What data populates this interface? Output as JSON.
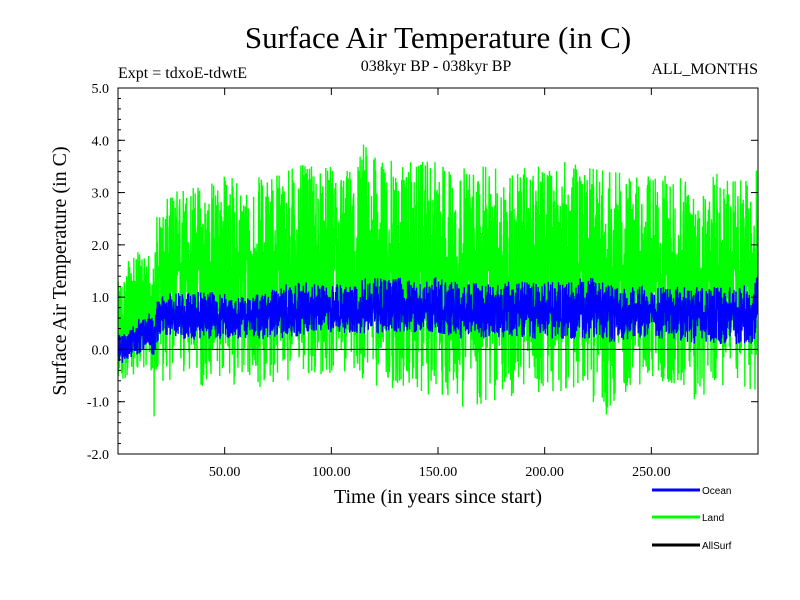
{
  "chart_data": {
    "type": "line",
    "title": "Surface Air Temperature (in C)",
    "subtitle_left": "Expt = tdxoE-tdwtE",
    "subtitle_center": "038kyr BP - 038kyr BP",
    "subtitle_right": "ALL_MONTHS",
    "xlabel": "Time (in years since start)",
    "ylabel": "Surface Air Temperature (in C)",
    "xlim": [
      0,
      300
    ],
    "ylim": [
      -2.0,
      5.0
    ],
    "x_ticks": [
      50,
      100,
      150,
      200,
      250
    ],
    "x_tick_labels": [
      "50.00",
      "100.00",
      "150.00",
      "200.00",
      "250.00"
    ],
    "y_ticks": [
      -2,
      -1,
      0,
      1,
      2,
      3,
      4,
      5
    ],
    "y_tick_labels": [
      "-2.0",
      "-1.0",
      "0.0",
      "1.0",
      "2.0",
      "3.0",
      "4.0",
      "5.0"
    ],
    "zero_line": 0.0,
    "series": [
      {
        "name": "Land",
        "color": "#00ff00",
        "x": [
          0,
          5,
          10,
          15,
          17,
          18,
          20,
          25,
          30,
          40,
          50,
          60,
          70,
          80,
          90,
          100,
          110,
          115,
          120,
          130,
          140,
          150,
          160,
          170,
          180,
          190,
          200,
          210,
          220,
          230,
          240,
          250,
          260,
          270,
          280,
          290,
          298,
          300
        ],
        "mean": [
          0.3,
          0.6,
          0.8,
          0.9,
          0.6,
          1.2,
          1.4,
          1.5,
          1.5,
          1.5,
          1.5,
          1.5,
          1.5,
          1.6,
          1.7,
          1.7,
          1.75,
          1.8,
          1.75,
          1.7,
          1.7,
          1.65,
          1.6,
          1.6,
          1.6,
          1.65,
          1.65,
          1.65,
          1.6,
          1.55,
          1.55,
          1.55,
          1.5,
          1.5,
          1.5,
          1.5,
          1.6,
          1.6
        ],
        "max": [
          1.3,
          1.7,
          1.9,
          1.8,
          1.6,
          2.6,
          2.7,
          3.0,
          3.2,
          3.2,
          3.4,
          3.2,
          3.4,
          3.6,
          3.5,
          3.5,
          3.5,
          4.05,
          3.7,
          3.6,
          3.6,
          3.6,
          3.5,
          3.5,
          3.5,
          3.5,
          3.5,
          3.6,
          3.5,
          3.5,
          3.3,
          3.4,
          3.3,
          3.3,
          3.4,
          3.3,
          3.2,
          3.8
        ],
        "min": [
          -0.7,
          -0.6,
          -0.4,
          -0.3,
          -1.45,
          -0.9,
          -0.7,
          -0.6,
          -0.7,
          -0.8,
          -0.6,
          -0.8,
          -0.7,
          -0.6,
          -0.6,
          -0.5,
          -0.5,
          -0.6,
          -0.7,
          -0.8,
          -0.9,
          -0.9,
          -1.1,
          -1.2,
          -1.0,
          -0.9,
          -0.8,
          -0.8,
          -0.9,
          -1.3,
          -0.8,
          -0.6,
          -0.7,
          -1.0,
          -0.8,
          -0.7,
          -1.0,
          -0.5
        ]
      },
      {
        "name": "Ocean",
        "color": "#0000ff",
        "x": [
          0,
          5,
          10,
          15,
          17,
          18,
          20,
          25,
          30,
          40,
          50,
          60,
          70,
          80,
          90,
          100,
          110,
          115,
          120,
          130,
          140,
          150,
          160,
          170,
          180,
          190,
          200,
          210,
          220,
          230,
          240,
          250,
          260,
          270,
          280,
          290,
          298,
          300
        ],
        "mean": [
          0.0,
          0.15,
          0.3,
          0.4,
          0.2,
          0.5,
          0.6,
          0.65,
          0.65,
          0.65,
          0.65,
          0.65,
          0.65,
          0.7,
          0.75,
          0.78,
          0.8,
          0.8,
          0.8,
          0.78,
          0.78,
          0.76,
          0.75,
          0.74,
          0.74,
          0.75,
          0.75,
          0.75,
          0.74,
          0.72,
          0.72,
          0.72,
          0.7,
          0.7,
          0.7,
          0.7,
          0.8,
          0.8
        ],
        "max": [
          0.3,
          0.4,
          0.6,
          0.7,
          0.5,
          0.9,
          1.0,
          1.1,
          1.1,
          1.1,
          1.1,
          1.0,
          1.1,
          1.3,
          1.3,
          1.3,
          1.3,
          1.5,
          1.4,
          1.4,
          1.3,
          1.4,
          1.3,
          1.3,
          1.3,
          1.3,
          1.3,
          1.3,
          1.4,
          1.3,
          1.2,
          1.2,
          1.2,
          1.2,
          1.2,
          1.2,
          1.3,
          1.5
        ],
        "min": [
          -0.3,
          -0.2,
          -0.1,
          0.0,
          -0.2,
          0.1,
          0.2,
          0.2,
          0.2,
          0.2,
          0.2,
          0.2,
          0.2,
          0.2,
          0.3,
          0.3,
          0.3,
          0.3,
          0.3,
          0.3,
          0.3,
          0.3,
          0.2,
          0.2,
          0.2,
          0.2,
          0.2,
          0.2,
          0.2,
          0.1,
          0.2,
          0.2,
          0.2,
          0.1,
          0.1,
          0.1,
          0.1,
          0.6
        ]
      },
      {
        "name": "AllSurf",
        "color": "#000000",
        "x": [],
        "mean": [],
        "max": [],
        "min": []
      }
    ],
    "legend_position": "bottom-right"
  }
}
